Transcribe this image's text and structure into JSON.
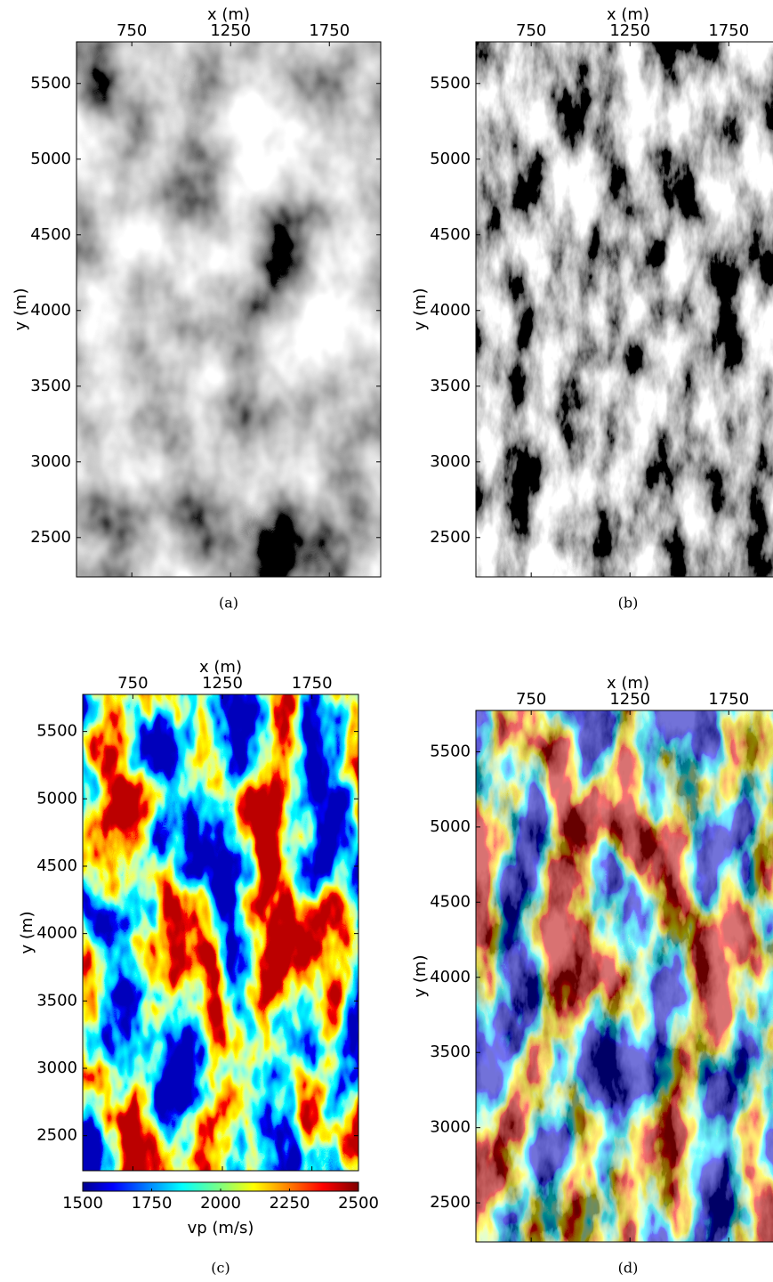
{
  "chart_data": [
    {
      "type": "image",
      "caption": "(a)",
      "cmap": "gray",
      "x_label": "x (m)",
      "y_label": "y (m)",
      "xlim": [
        470,
        2010
      ],
      "ylim": [
        2240,
        5775
      ],
      "xticks": [
        750,
        1250,
        1750
      ],
      "yticks": [
        2500,
        3000,
        3500,
        4000,
        4500,
        5000,
        5500
      ]
    },
    {
      "type": "image",
      "caption": "(b)",
      "cmap": "gray",
      "x_label": "x (m)",
      "y_label": "y (m)",
      "xlim": [
        470,
        2010
      ],
      "ylim": [
        2240,
        5775
      ],
      "xticks": [
        750,
        1250,
        1750
      ],
      "yticks": [
        2500,
        3000,
        3500,
        4000,
        4500,
        5000,
        5500
      ]
    },
    {
      "type": "image",
      "caption": "(c)",
      "cmap": "jet",
      "x_label": "x (m)",
      "y_label": "y (m)",
      "xlim": [
        470,
        2010
      ],
      "ylim": [
        2240,
        5775
      ],
      "xticks": [
        750,
        1250,
        1750
      ],
      "yticks": [
        2500,
        3000,
        3500,
        4000,
        4500,
        5000,
        5500
      ],
      "colorbar": {
        "label": "vp (m/s)",
        "lim": [
          1500,
          2500
        ],
        "ticks": [
          1500,
          1750,
          2000,
          2250,
          2500
        ]
      }
    },
    {
      "type": "image",
      "caption": "(d)",
      "cmap": "gray+jet",
      "x_label": "x (m)",
      "y_label": "y (m)",
      "xlim": [
        470,
        2010
      ],
      "ylim": [
        2240,
        5775
      ],
      "xticks": [
        750,
        1250,
        1750
      ],
      "yticks": [
        2500,
        3000,
        3500,
        4000,
        4500,
        5000,
        5500
      ]
    }
  ]
}
